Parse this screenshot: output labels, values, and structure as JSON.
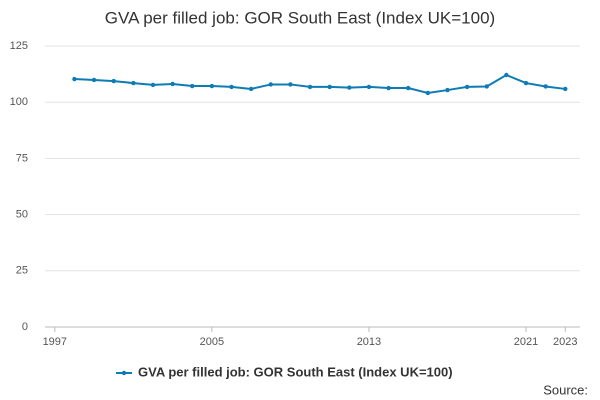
{
  "chart_data": {
    "type": "line",
    "title": "GVA per filled job: GOR South East (Index UK=100)",
    "source": "Source:",
    "x": [
      1998,
      1999,
      2000,
      2001,
      2002,
      2003,
      2004,
      2005,
      2006,
      2007,
      2008,
      2009,
      2010,
      2011,
      2012,
      2013,
      2014,
      2015,
      2016,
      2017,
      2018,
      2019,
      2020,
      2021,
      2022,
      2023
    ],
    "series": [
      {
        "name": "GVA per filled job: GOR South East (Index UK=100)",
        "color": "#0e7bb5",
        "values": [
          110.3,
          109.9,
          109.4,
          108.5,
          107.7,
          108.1,
          107.2,
          107.2,
          106.8,
          105.9,
          107.9,
          107.9,
          106.8,
          106.8,
          106.5,
          106.8,
          106.3,
          106.3,
          104.1,
          105.4,
          106.8,
          107.0,
          112.1,
          108.5,
          107.0,
          105.9
        ]
      }
    ],
    "xlim": [
      1996.5,
      2023.75
    ],
    "xticks": [
      1997,
      2005,
      2013,
      2021,
      2023
    ],
    "ylim": [
      0,
      125
    ],
    "yticks": [
      0,
      25,
      50,
      75,
      100,
      125
    ],
    "grid": true,
    "legend": "bottom"
  }
}
